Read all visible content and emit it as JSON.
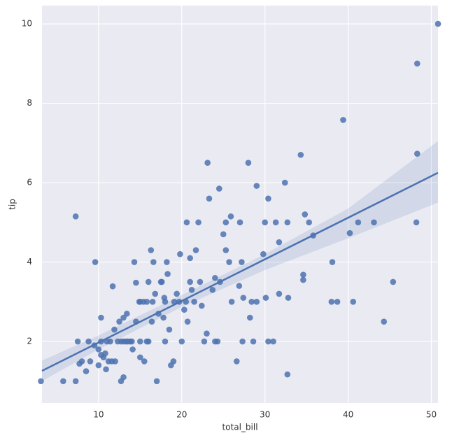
{
  "chart_data": {
    "type": "scatter",
    "x_label": "total_bill",
    "y_label": "tip",
    "xlim": [
      3.2,
      50.8
    ],
    "ylim": [
      0.45,
      10.46
    ],
    "xticks": [
      10,
      20,
      30,
      40,
      50
    ],
    "yticks": [
      2,
      4,
      6,
      8,
      10
    ],
    "grid": true,
    "color": "#4c72b0",
    "series": [
      {
        "x": [
          3.07,
          5.75,
          7.25,
          7.25,
          7.5,
          7.7,
          8.0,
          8.5,
          8.8,
          9.0,
          9.6,
          10,
          10,
          10.3,
          10.3,
          10.6,
          10.3,
          10.8,
          11,
          11.2,
          11.6,
          11.7,
          11.9,
          12,
          12.3,
          12.5,
          12.7,
          13,
          13,
          13.4,
          13.5,
          13.8,
          14,
          14.1,
          14.3,
          14.5,
          15,
          15,
          15.4,
          15.5,
          15.8,
          16,
          16,
          16.3,
          16.4,
          16.6,
          16.8,
          17,
          17.2,
          17.5,
          17.8,
          18,
          18,
          18.2,
          18.3,
          18.5,
          18.7,
          19,
          19.4,
          19.8,
          20,
          20.3,
          20.5,
          20.6,
          20.7,
          21,
          21,
          21.5,
          21.7,
          22,
          22.2,
          22.7,
          23,
          23.1,
          23.3,
          23.7,
          24,
          24,
          24.3,
          24.6,
          24.5,
          25,
          25.3,
          25.3,
          25.7,
          25.9,
          26,
          26.6,
          26.9,
          27,
          27.2,
          27.3,
          27.4,
          28,
          28.2,
          28.4,
          28.6,
          29,
          29,
          29.8,
          30,
          30.1,
          30.4,
          30.4,
          31,
          31.3,
          31.7,
          32.4,
          32.7,
          32.7,
          32.8,
          34.3,
          34.6,
          34.6,
          34.8,
          35.3,
          35.8,
          38,
          38.1,
          38.7,
          39.4,
          40.2,
          40.6,
          41.2,
          43.1,
          44.3,
          45.4,
          48.2,
          48.3,
          48.3,
          50.8,
          31.7,
          14.9,
          16.5,
          17.9,
          19.1,
          12.7,
          13.3,
          15.0,
          11.4,
          10.9,
          9.5,
          13,
          14.5,
          15.8,
          17.6,
          19.7,
          21.2,
          22.4
        ],
        "y": [
          1.0,
          1.0,
          5.15,
          1.0,
          2.0,
          1.44,
          1.5,
          1.25,
          2.0,
          1.5,
          4.0,
          1.4,
          1.8,
          1.66,
          2.0,
          1.6,
          2.6,
          1.7,
          2,
          1.5,
          1.5,
          3.39,
          2.3,
          1.5,
          2,
          2.5,
          1.0,
          1.1,
          2,
          2.7,
          2.0,
          2.0,
          2,
          1.8,
          4.0,
          2.5,
          1.6,
          3,
          3,
          1.5,
          3.0,
          2,
          3.5,
          4.3,
          2.5,
          4,
          3.2,
          1.0,
          2.7,
          3.5,
          2.6,
          2,
          3,
          4.0,
          3.7,
          2.3,
          1.4,
          1.5,
          3.2,
          4.2,
          2,
          2.8,
          3.0,
          5.0,
          2.5,
          3.5,
          4.1,
          3.0,
          4.3,
          5.0,
          3.5,
          2.0,
          2.2,
          6.5,
          5.6,
          3.3,
          2.0,
          3.6,
          2.0,
          3.5,
          5.85,
          4.7,
          5.0,
          4.3,
          4.0,
          5.15,
          3.0,
          1.5,
          3.4,
          5.0,
          4.0,
          2.0,
          3.1,
          6.5,
          2.6,
          3.0,
          2.0,
          5.92,
          3.0,
          4.2,
          5.0,
          3.1,
          5.6,
          2.0,
          2.0,
          5.0,
          3.2,
          6.0,
          5.0,
          1.17,
          3.1,
          6.7,
          3.55,
          3.68,
          5.2,
          5.0,
          4.67,
          3.0,
          4.0,
          3.0,
          7.58,
          4.73,
          3.0,
          5.0,
          5.0,
          2.5,
          3.5,
          5.0,
          6.73,
          9.0,
          10.0,
          4.5,
          3.0,
          3.0,
          3.1,
          3.0,
          2.0,
          2.0,
          2.0,
          2.0,
          1.3,
          1.9,
          2.6,
          3.48,
          2.0,
          3.5,
          3.0,
          3.3,
          2.9
        ]
      }
    ],
    "regression": {
      "x": [
        3.2,
        50.8
      ],
      "y": [
        1.26,
        6.25
      ]
    },
    "ci": {
      "x": [
        3.2,
        10,
        20,
        30,
        40,
        50.8
      ],
      "lower": [
        1.0,
        1.8,
        2.87,
        3.8,
        4.6,
        5.5
      ],
      "upper": [
        1.52,
        2.15,
        3.17,
        4.2,
        5.35,
        7.05
      ]
    }
  }
}
